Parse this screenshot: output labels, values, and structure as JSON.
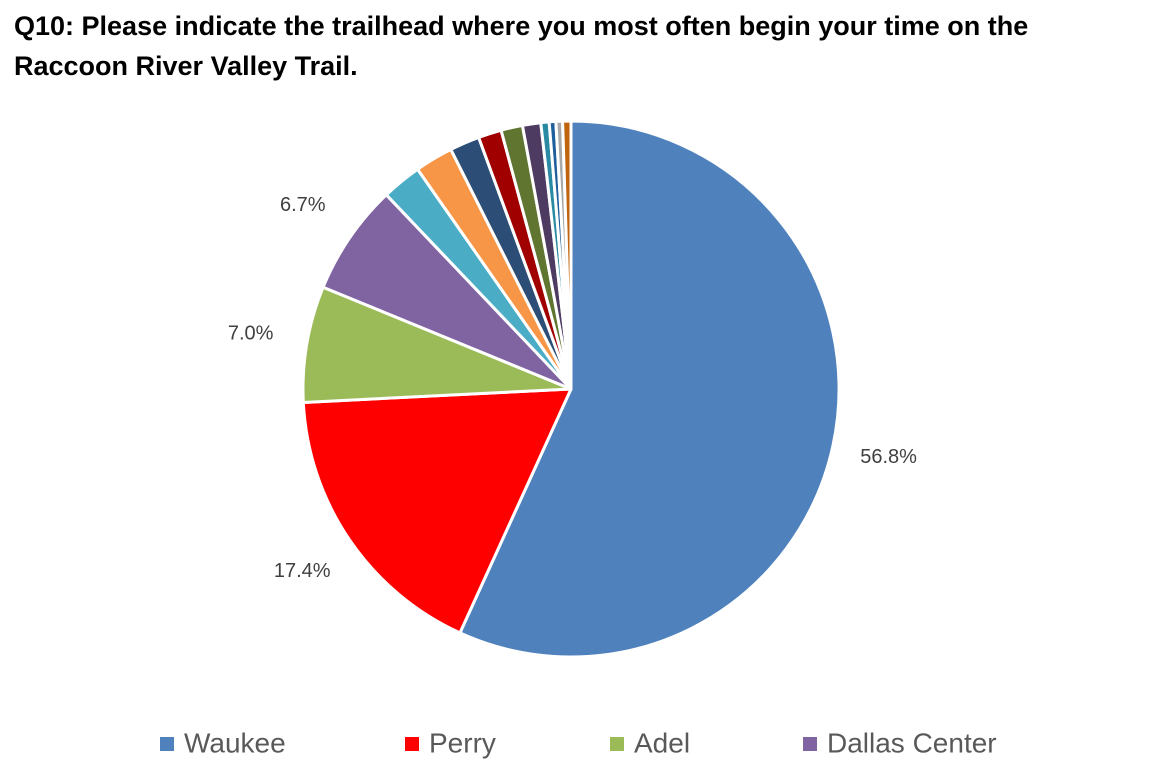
{
  "chart_data": {
    "type": "pie",
    "title": "Q10: Please indicate the trailhead where you most often begin your time on the Raccoon River Valley Trail.",
    "categories": [
      "Waukee",
      "Perry",
      "Adel",
      "Dallas Center",
      null,
      null,
      null,
      null,
      null,
      null,
      null,
      null,
      null,
      null
    ],
    "values": [
      56.8,
      17.4,
      7.0,
      6.7,
      2.4,
      2.3,
      1.8,
      1.4,
      1.3,
      1.1,
      0.5,
      0.4,
      0.4,
      0.5
    ],
    "value_labels": [
      "56.8%",
      "17.4%",
      "7.0%",
      "6.7%",
      null,
      null,
      null,
      null,
      null,
      null,
      null,
      null,
      null,
      null
    ],
    "colors": [
      "#4f81bd",
      "#ff0000",
      "#9bbb59",
      "#8064a2",
      "#4bacc6",
      "#f79646",
      "#2c4d75",
      "#a00000",
      "#5f7530",
      "#4d3b62",
      "#2a8aa3",
      "#1f5f9c",
      "#a9a9a9",
      "#c0640d"
    ],
    "legend": "bottom"
  }
}
